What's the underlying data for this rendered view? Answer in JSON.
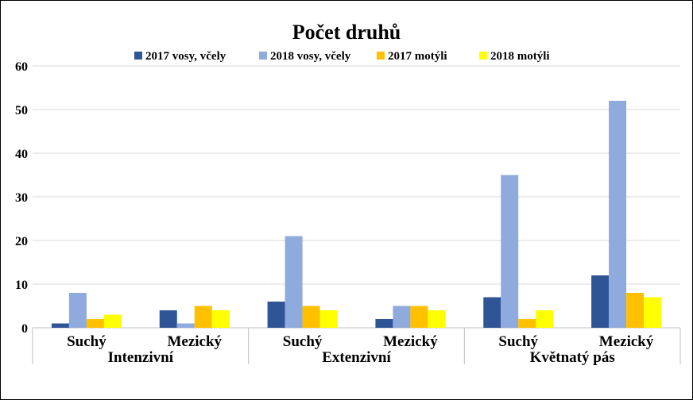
{
  "chart_data": {
    "type": "bar",
    "title": "Počet druhů",
    "xlabel": "",
    "ylabel": "",
    "ylim": [
      0,
      60
    ],
    "yticks": [
      0,
      10,
      20,
      30,
      40,
      50,
      60
    ],
    "grid": true,
    "legend_position": "top",
    "groups": [
      {
        "label": "Intenzivní",
        "categories": [
          "Suchý",
          "Mezický"
        ]
      },
      {
        "label": "Extenzivní",
        "categories": [
          "Suchý",
          "Mezický"
        ]
      },
      {
        "label": "Květnatý pás",
        "categories": [
          "Suchý",
          "Mezický"
        ]
      }
    ],
    "categories": [
      "Suchý",
      "Mezický",
      "Suchý",
      "Mezický",
      "Suchý",
      "Mezický"
    ],
    "series": [
      {
        "name": "2017 vosy, včely",
        "color": "#2F5597",
        "values": [
          1,
          4,
          6,
          2,
          7,
          12
        ]
      },
      {
        "name": "2018 vosy, včely",
        "color": "#8FAADC",
        "values": [
          8,
          1,
          21,
          5,
          35,
          52
        ]
      },
      {
        "name": "2017 motýli",
        "color": "#FFC000",
        "values": [
          2,
          5,
          5,
          5,
          2,
          8
        ]
      },
      {
        "name": "2018 motýli",
        "color": "#FFFF00",
        "values": [
          3,
          4,
          4,
          4,
          4,
          7
        ]
      }
    ]
  }
}
